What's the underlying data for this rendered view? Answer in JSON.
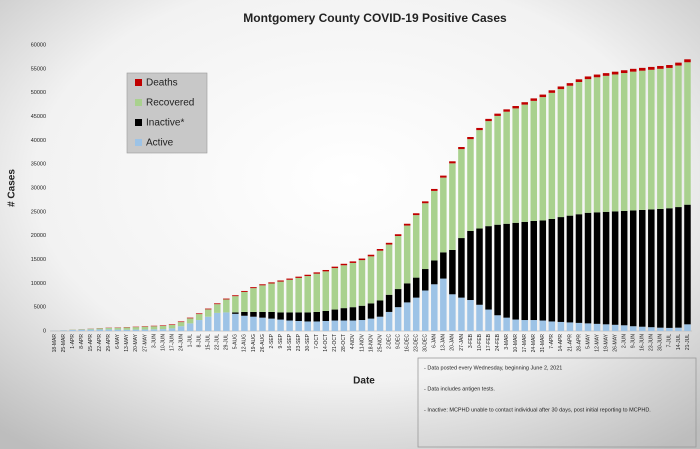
{
  "chart_data": {
    "type": "stacked-bar",
    "title": "Montgomery County COVID-19 Positive Cases",
    "x_label": "Date",
    "y_label": "# Cases",
    "categories": [
      "18-MAR",
      "25-MAR",
      "1-APR",
      "8-APR",
      "15-APR",
      "22-APR",
      "29-APR",
      "6-MAY",
      "13-MAY",
      "20-MAY",
      "27-MAY",
      "3-JUN",
      "10-JUN",
      "17-JUN",
      "24-JUN",
      "1-JUL",
      "8-JUL",
      "15-JUL",
      "22-JUL",
      "29-JUL",
      "5-AUG",
      "12-AUG",
      "19-AUG",
      "26-AUG",
      "2-SEP",
      "9-SEP",
      "16-SEP",
      "23-SEP",
      "30-SEP",
      "7-OCT",
      "14-OCT",
      "21-OCT",
      "28-OCT",
      "4-NOV",
      "11-NOV",
      "18-NOV",
      "25-NOV",
      "2-DEC",
      "9-DEC",
      "16-DEC",
      "23-DEC",
      "30-DEC",
      "6-JAN",
      "13-JAN",
      "20-JAN",
      "27-JAN",
      "3-FEB",
      "10-FEB",
      "17-FEB",
      "24-FEB",
      "3-MAR",
      "10-MAR",
      "17-MAR",
      "24-MAR",
      "31-MAR",
      "7-APR",
      "14-APR",
      "21-APR",
      "28-APR",
      "5-MAY",
      "12-MAY",
      "19-MAY",
      "26-MAY",
      "2-JUN",
      "9-JUN",
      "16-JUN",
      "23-JUN",
      "30-JUN",
      "7-JUL",
      "14-JUL",
      "21-JUL"
    ],
    "series": [
      {
        "name": "Active",
        "color": "#9dc3e6",
        "values": [
          40,
          120,
          230,
          280,
          300,
          320,
          330,
          300,
          280,
          300,
          320,
          350,
          400,
          550,
          1000,
          1600,
          2300,
          3000,
          3800,
          3900,
          3600,
          3200,
          3000,
          2800,
          2600,
          2400,
          2200,
          2100,
          2000,
          2000,
          2100,
          2200,
          2200,
          2200,
          2300,
          2600,
          3000,
          4000,
          5000,
          6000,
          7000,
          8500,
          9800,
          11000,
          7700,
          7000,
          6500,
          5500,
          4500,
          3300,
          2800,
          2400,
          2300,
          2300,
          2200,
          2000,
          1900,
          1800,
          1700,
          1600,
          1500,
          1400,
          1300,
          1200,
          1000,
          900,
          800,
          700,
          650,
          700,
          1400
        ]
      },
      {
        "name": "Inactive*",
        "color": "#000000",
        "values": [
          0,
          0,
          0,
          0,
          0,
          0,
          0,
          0,
          0,
          0,
          0,
          0,
          0,
          0,
          0,
          0,
          0,
          0,
          0,
          0,
          300,
          800,
          1000,
          1200,
          1400,
          1500,
          1700,
          1800,
          1900,
          2000,
          2100,
          2300,
          2600,
          2800,
          3000,
          3200,
          3400,
          3600,
          3800,
          4000,
          4200,
          4500,
          5000,
          5500,
          9300,
          12500,
          14500,
          16000,
          17500,
          19000,
          19700,
          20300,
          20600,
          20800,
          21000,
          21500,
          22000,
          22400,
          22800,
          23200,
          23400,
          23600,
          23800,
          24000,
          24300,
          24500,
          24700,
          24900,
          25100,
          25300,
          25100
        ]
      },
      {
        "name": "Recovered",
        "color": "#a9d18e",
        "values": [
          8,
          25,
          60,
          100,
          170,
          240,
          320,
          390,
          450,
          520,
          590,
          650,
          690,
          730,
          870,
          1060,
          1250,
          1540,
          1830,
          2720,
          3410,
          4200,
          4990,
          5580,
          5970,
          6460,
          6850,
          7240,
          7630,
          8020,
          8310,
          8700,
          8990,
          9280,
          9570,
          9860,
          10450,
          10540,
          11130,
          12120,
          13110,
          13800,
          14590,
          15680,
          18170,
          18660,
          19250,
          20640,
          22030,
          22820,
          23510,
          24000,
          24590,
          25180,
          25870,
          26460,
          26850,
          27250,
          27740,
          28040,
          28330,
          28530,
          28720,
          28920,
          29110,
          29210,
          29300,
          29400,
          29440,
          29690,
          29880
        ]
      },
      {
        "name": "Deaths",
        "color": "#c00000",
        "values": [
          2,
          5,
          10,
          20,
          30,
          40,
          50,
          60,
          70,
          80,
          90,
          100,
          110,
          120,
          130,
          140,
          150,
          160,
          170,
          180,
          190,
          200,
          210,
          220,
          230,
          240,
          250,
          260,
          270,
          280,
          290,
          300,
          310,
          320,
          330,
          340,
          350,
          360,
          370,
          380,
          390,
          400,
          410,
          420,
          430,
          440,
          450,
          460,
          470,
          480,
          490,
          500,
          510,
          520,
          530,
          540,
          550,
          550,
          560,
          560,
          570,
          570,
          580,
          580,
          590,
          590,
          600,
          600,
          610,
          610,
          620
        ]
      }
    ],
    "ylim": [
      0,
      60000
    ],
    "yticks": [
      0,
      5000,
      10000,
      15000,
      20000,
      25000,
      30000,
      35000,
      40000,
      45000,
      50000,
      55000,
      60000
    ],
    "grid": false,
    "legend": "top-left",
    "notes": [
      "- Data posted every Wednesday, beginning June 2, 2021",
      "- Data includes antigen tests.",
      "- Inactive: MCPHD unable to contact individual after 30 days, post initial reporting to MCPHD."
    ]
  }
}
